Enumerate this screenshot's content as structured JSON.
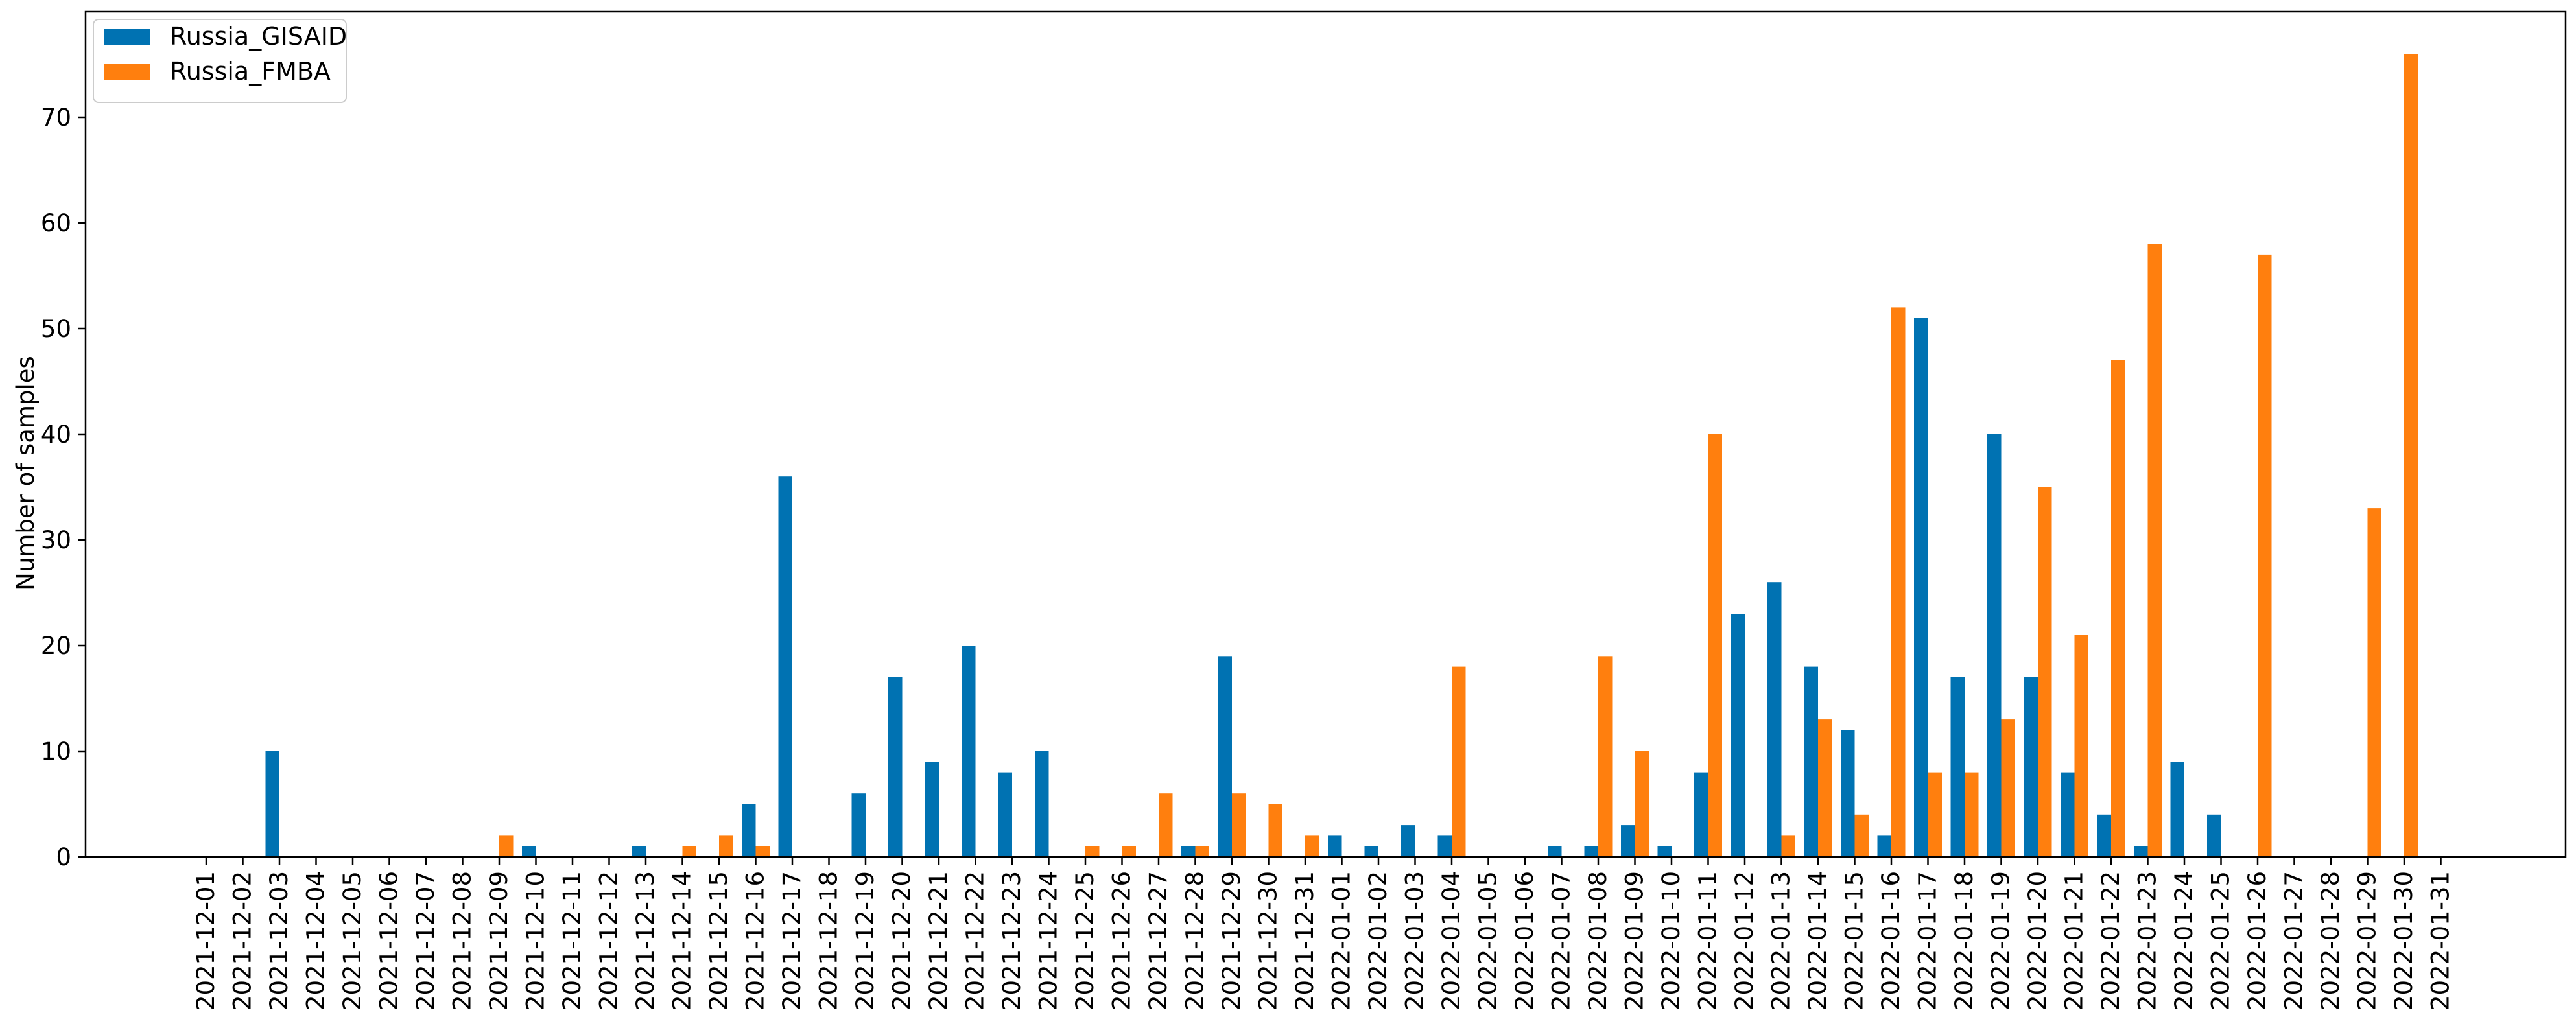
{
  "chart_data": {
    "type": "bar",
    "ylabel": "Number of samples",
    "ylim": [
      0,
      80
    ],
    "yticks": [
      0,
      10,
      20,
      30,
      40,
      50,
      60,
      70
    ],
    "legend_position": "top-left",
    "grid": false,
    "categories": [
      "2021-12-01",
      "2021-12-02",
      "2021-12-03",
      "2021-12-04",
      "2021-12-05",
      "2021-12-06",
      "2021-12-07",
      "2021-12-08",
      "2021-12-09",
      "2021-12-10",
      "2021-12-11",
      "2021-12-12",
      "2021-12-13",
      "2021-12-14",
      "2021-12-15",
      "2021-12-16",
      "2021-12-17",
      "2021-12-18",
      "2021-12-19",
      "2021-12-20",
      "2021-12-21",
      "2021-12-22",
      "2021-12-23",
      "2021-12-24",
      "2021-12-25",
      "2021-12-26",
      "2021-12-27",
      "2021-12-28",
      "2021-12-29",
      "2021-12-30",
      "2021-12-31",
      "2022-01-01",
      "2022-01-02",
      "2022-01-03",
      "2022-01-04",
      "2022-01-05",
      "2022-01-06",
      "2022-01-07",
      "2022-01-08",
      "2022-01-09",
      "2022-01-10",
      "2022-01-11",
      "2022-01-12",
      "2022-01-13",
      "2022-01-14",
      "2022-01-15",
      "2022-01-16",
      "2022-01-17",
      "2022-01-18",
      "2022-01-19",
      "2022-01-20",
      "2022-01-21",
      "2022-01-22",
      "2022-01-23",
      "2022-01-24",
      "2022-01-25",
      "2022-01-26",
      "2022-01-27",
      "2022-01-28",
      "2022-01-29",
      "2022-01-30",
      "2022-01-31"
    ],
    "series": [
      {
        "name": "Russia_GISAID",
        "color": "#0072b2",
        "values": [
          0,
          0,
          10,
          0,
          0,
          0,
          0,
          0,
          0,
          1,
          0,
          0,
          1,
          0,
          0,
          5,
          36,
          0,
          6,
          17,
          9,
          20,
          8,
          10,
          0,
          0,
          0,
          1,
          19,
          0,
          0,
          2,
          1,
          3,
          2,
          0,
          0,
          1,
          1,
          3,
          1,
          8,
          23,
          26,
          18,
          12,
          2,
          51,
          17,
          40,
          17,
          8,
          4,
          1,
          9,
          4,
          0,
          0,
          0,
          0,
          0,
          0
        ]
      },
      {
        "name": "Russia_FMBA",
        "color": "#ff7f0e",
        "values": [
          0,
          0,
          0,
          0,
          0,
          0,
          0,
          0,
          2,
          0,
          0,
          0,
          0,
          1,
          2,
          1,
          0,
          0,
          0,
          0,
          0,
          0,
          0,
          0,
          1,
          1,
          6,
          1,
          6,
          5,
          2,
          0,
          0,
          0,
          18,
          0,
          0,
          0,
          19,
          10,
          0,
          40,
          0,
          2,
          13,
          4,
          52,
          8,
          8,
          13,
          35,
          21,
          47,
          58,
          0,
          0,
          57,
          0,
          0,
          33,
          76,
          0
        ]
      }
    ]
  }
}
